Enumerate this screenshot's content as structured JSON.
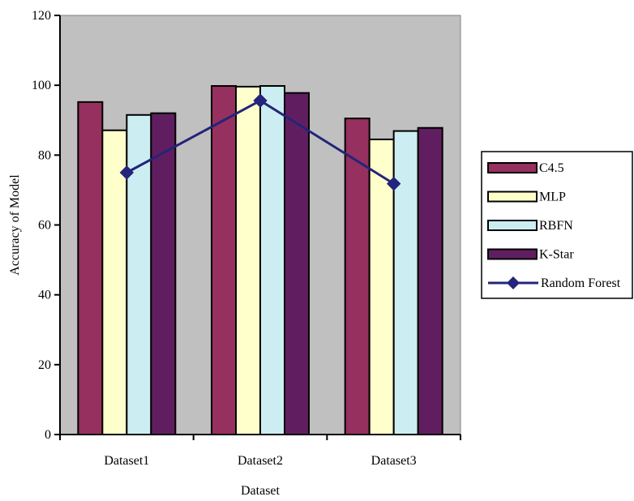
{
  "chart_data": {
    "type": "bar",
    "categories": [
      "Dataset1",
      "Dataset2",
      "Dataset3"
    ],
    "series": [
      {
        "name": "C4.5",
        "type": "bar",
        "color": "#96305e",
        "values": [
          95.2,
          99.8,
          90.5
        ]
      },
      {
        "name": "MLP",
        "type": "bar",
        "color": "#ffffcc",
        "values": [
          87.1,
          99.6,
          84.5
        ]
      },
      {
        "name": "RBFN",
        "type": "bar",
        "color": "#cceef2",
        "values": [
          91.5,
          99.8,
          86.9
        ]
      },
      {
        "name": "K-Star",
        "type": "bar",
        "color": "#601e60",
        "values": [
          92.0,
          97.8,
          87.8
        ]
      },
      {
        "name": "Random Forest",
        "type": "line",
        "color": "#24247a",
        "marker": "diamond",
        "values": [
          75.0,
          95.6,
          71.8
        ]
      }
    ],
    "xlabel": "Dataset",
    "ylabel": "Accuracy of Model",
    "ylim": [
      0,
      120
    ],
    "yticks": [
      0,
      20,
      40,
      60,
      80,
      100,
      120
    ],
    "plot_background": "#c0c0c0",
    "grid": false,
    "legend": "right"
  }
}
